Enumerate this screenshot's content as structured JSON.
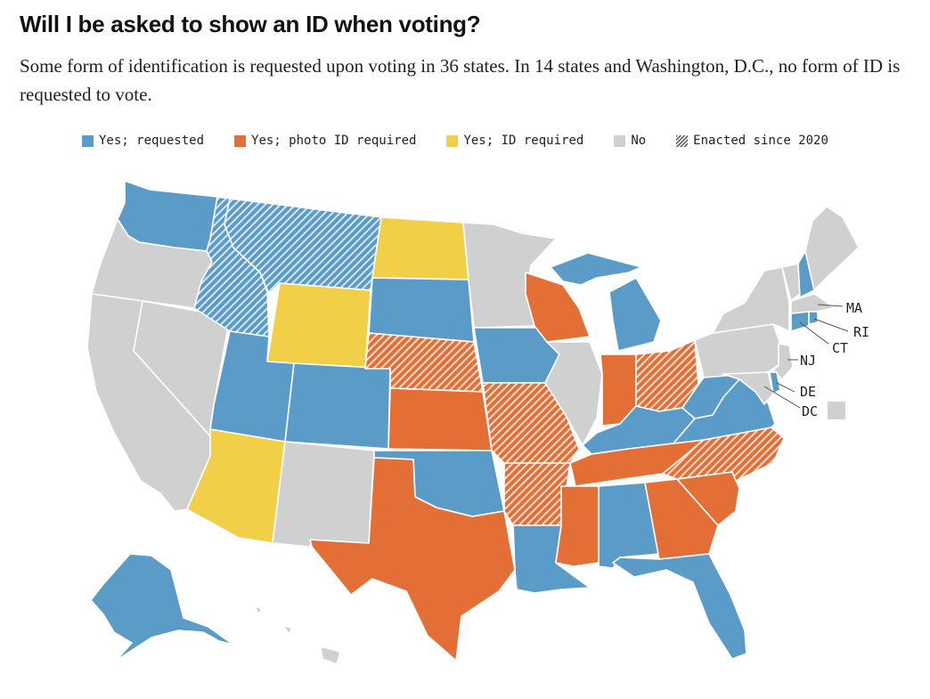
{
  "title": "Will I be asked to show an ID when voting?",
  "subtitle": "Some form of identification is requested upon voting in 36 states. In 14 states and Washington, D.C., no form of ID is requested to vote.",
  "legend": [
    {
      "key": "requested",
      "label": "Yes; requested",
      "color": "#5b9bc8"
    },
    {
      "key": "photo",
      "label": "Yes; photo ID required",
      "color": "#e36f36"
    },
    {
      "key": "id",
      "label": "Yes; ID required",
      "color": "#f1cf47"
    },
    {
      "key": "no",
      "label": "No",
      "color": "#d0d0d0"
    },
    {
      "key": "enacted",
      "label": "Enacted since 2020",
      "color": "#999999"
    }
  ],
  "state_categories": {
    "WA": "requested",
    "OR": "no",
    "CA": "no",
    "NV": "no",
    "ID": "requested",
    "MT": "requested",
    "WY": "id",
    "UT": "requested",
    "AZ": "id",
    "CO": "requested",
    "NM": "no",
    "ND": "id",
    "SD": "requested",
    "NE": "photo",
    "KS": "photo",
    "OK": "requested",
    "TX": "photo",
    "MN": "no",
    "IA": "requested",
    "MO": "photo",
    "AR": "photo",
    "LA": "requested",
    "WI": "photo",
    "IL": "no",
    "MI": "requested",
    "IN": "photo",
    "OH": "photo",
    "KY": "requested",
    "TN": "photo",
    "MS": "photo",
    "AL": "requested",
    "GA": "photo",
    "FL": "requested",
    "SC": "photo",
    "NC": "photo",
    "VA": "requested",
    "WV": "requested",
    "PA": "no",
    "NY": "no",
    "VT": "no",
    "NH": "requested",
    "ME": "no",
    "MA": "no",
    "RI": "requested",
    "CT": "requested",
    "NJ": "no",
    "DE": "requested",
    "MD": "no",
    "DC": "no",
    "AK": "requested",
    "HI": "no"
  },
  "enacted_since_2020": [
    "ID",
    "MT",
    "NE",
    "MO",
    "AR",
    "OH",
    "NC"
  ],
  "callouts": {
    "MA": "MA",
    "RI": "RI",
    "CT": "CT",
    "NJ": "NJ",
    "DE": "DE",
    "DC": "DC"
  }
}
